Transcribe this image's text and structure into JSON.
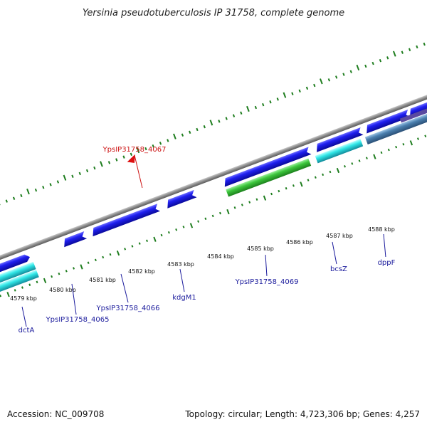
{
  "title": "Yersinia pseudotuberculosis IP 31758, complete genome",
  "footer": {
    "accession": "Accession: NC_009708",
    "summary": "Topology: circular; Length: 4,723,306 bp; Genes: 4,257"
  },
  "colors": {
    "backbone": "#8a8a8a",
    "cds_forward": "#1a1ae6",
    "cds_reverse_cyan": "#22dede",
    "cds_green": "#3cc63c",
    "cds_steel": "#4a7fae",
    "gc_ticks": "#1e7d1e",
    "label_blue": "#1a1a9c",
    "label_red": "#cc1010"
  },
  "scale_labels": [
    "4579 kbp",
    "4580 kbp",
    "4581 kbp",
    "4582 kbp",
    "4583 kbp",
    "4584 kbp",
    "4585 kbp",
    "4586 kbp",
    "4587 kbp",
    "4588 kbp"
  ],
  "gene_labels": [
    {
      "name": "YpsIP31758_4067",
      "color": "red"
    },
    {
      "name": "dctA",
      "color": "blue"
    },
    {
      "name": "YpsIP31758_4065",
      "color": "blue"
    },
    {
      "name": "YpsIP31758_4066",
      "color": "blue"
    },
    {
      "name": "kdgM1",
      "color": "blue"
    },
    {
      "name": "YpsIP31758_4069",
      "color": "blue"
    },
    {
      "name": "bcsZ",
      "color": "blue"
    },
    {
      "name": "dppF",
      "color": "blue"
    }
  ]
}
